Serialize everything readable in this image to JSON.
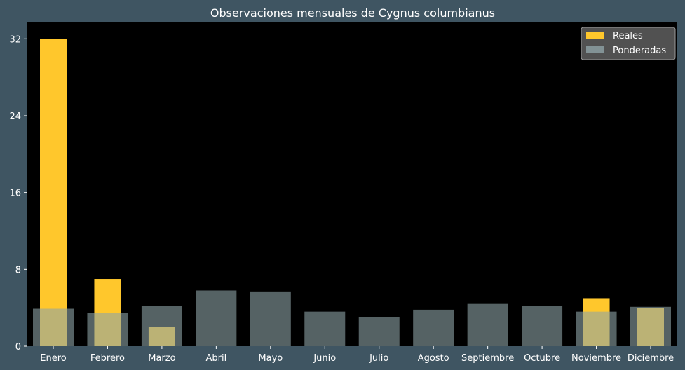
{
  "chart_data": {
    "type": "bar",
    "title": "Observaciones mensuales de Cygnus columbianus",
    "xlabel": "",
    "ylabel": "",
    "categories": [
      "Enero",
      "Febrero",
      "Marzo",
      "Abril",
      "Mayo",
      "Junio",
      "Julio",
      "Agosto",
      "Septiembre",
      "Octubre",
      "Noviembre",
      "Diciembre"
    ],
    "series": [
      {
        "name": "Reales",
        "color": "#ffc72c",
        "values": [
          32,
          7,
          2,
          0,
          0,
          0,
          0,
          0,
          0,
          0,
          5,
          4
        ]
      },
      {
        "name": "Ponderadas",
        "color": "#8ea3a6",
        "opacity": 0.6,
        "values": [
          3.9,
          3.5,
          4.2,
          5.8,
          5.7,
          3.6,
          3.0,
          3.8,
          4.4,
          4.2,
          3.6,
          4.1
        ]
      }
    ],
    "ylim": [
      0,
      33.7
    ],
    "yticks": [
      0,
      8,
      16,
      24,
      32
    ],
    "grid": false,
    "legend_position": "top-right",
    "colors": {
      "background": "#3f5562",
      "plot_background": "#000000",
      "text": "#ffffff"
    }
  }
}
